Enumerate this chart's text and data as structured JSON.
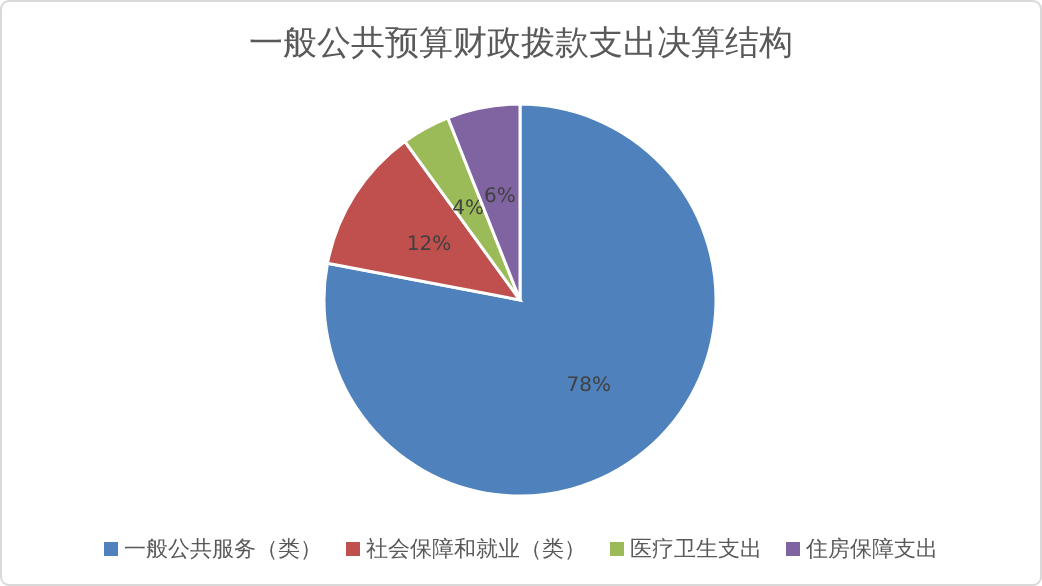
{
  "chart_data": {
    "type": "pie",
    "title": "一般公共预算财政拨款支出决算结构",
    "categories": [
      "一般公共服务（类）",
      "社会保障和就业（类）",
      "医疗卫生支出",
      "住房保障支出"
    ],
    "values": [
      78,
      12,
      4,
      6
    ],
    "colors": [
      "#4f81bd",
      "#c0504d",
      "#9bbb59",
      "#8064a2"
    ],
    "value_labels": [
      "78%",
      "12%",
      "4%",
      "6%"
    ],
    "legend": "bottom"
  }
}
